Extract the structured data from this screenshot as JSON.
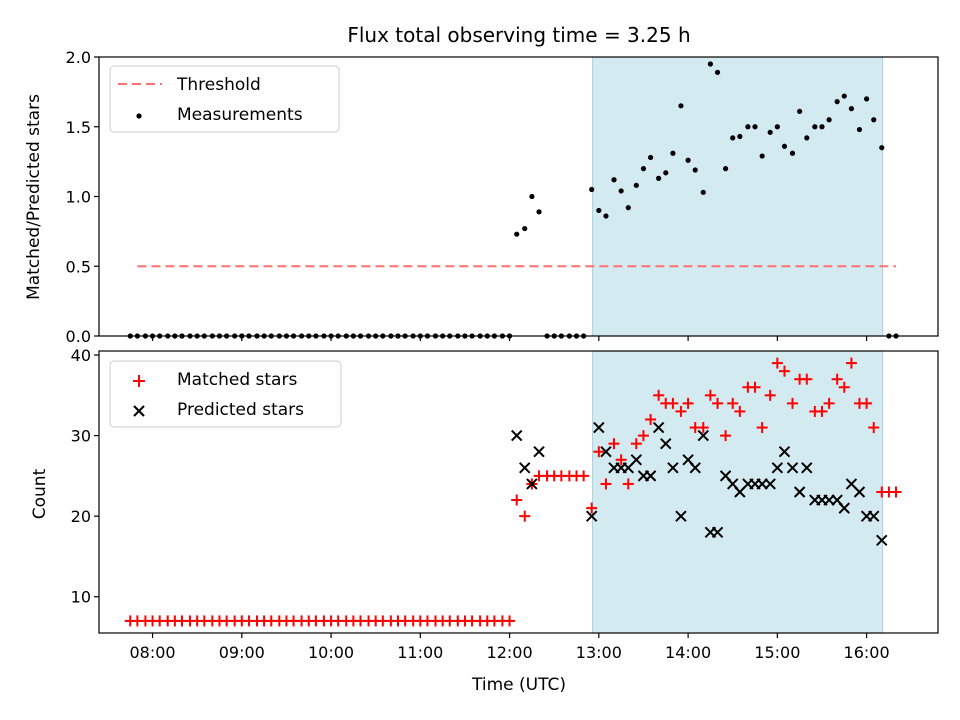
{
  "chart_data": {
    "title": "Flux total observing time = 3.25 h",
    "xlabel": "Time (UTC)",
    "xtick_labels": [
      "08:00",
      "09:00",
      "10:00",
      "11:00",
      "12:00",
      "13:00",
      "14:00",
      "15:00",
      "16:00"
    ],
    "xlim_hours": [
      7.4,
      16.8
    ],
    "highlight": {
      "start": 12.93,
      "end": 16.18,
      "color": "#d3eaf0"
    },
    "top": {
      "type": "scatter",
      "ylabel": "Matched/Predicted stars",
      "ylim": [
        0,
        2.0
      ],
      "yticks": [
        0.0,
        0.5,
        1.0,
        1.5,
        2.0
      ],
      "ytick_labels": [
        "0.0",
        "0.5",
        "1.0",
        "1.5",
        "2.0"
      ],
      "threshold": {
        "label": "Threshold",
        "value": 0.5,
        "x_start": 7.83,
        "x_end": 16.33,
        "color": "#ff7070"
      },
      "measurements_label": "Measurements",
      "measurements": [
        [
          7.75,
          0
        ],
        [
          7.83,
          0
        ],
        [
          7.92,
          0
        ],
        [
          8.0,
          0
        ],
        [
          8.08,
          0
        ],
        [
          8.17,
          0
        ],
        [
          8.25,
          0
        ],
        [
          8.33,
          0
        ],
        [
          8.42,
          0
        ],
        [
          8.5,
          0
        ],
        [
          8.58,
          0
        ],
        [
          8.67,
          0
        ],
        [
          8.75,
          0
        ],
        [
          8.83,
          0
        ],
        [
          8.92,
          0
        ],
        [
          9.0,
          0
        ],
        [
          9.08,
          0
        ],
        [
          9.17,
          0
        ],
        [
          9.25,
          0
        ],
        [
          9.33,
          0
        ],
        [
          9.42,
          0
        ],
        [
          9.5,
          0
        ],
        [
          9.58,
          0
        ],
        [
          9.67,
          0
        ],
        [
          9.75,
          0
        ],
        [
          9.83,
          0
        ],
        [
          9.92,
          0
        ],
        [
          10.0,
          0
        ],
        [
          10.08,
          0
        ],
        [
          10.17,
          0
        ],
        [
          10.25,
          0
        ],
        [
          10.33,
          0
        ],
        [
          10.42,
          0
        ],
        [
          10.5,
          0
        ],
        [
          10.58,
          0
        ],
        [
          10.67,
          0
        ],
        [
          10.75,
          0
        ],
        [
          10.83,
          0
        ],
        [
          10.92,
          0
        ],
        [
          11.0,
          0
        ],
        [
          11.08,
          0
        ],
        [
          11.17,
          0
        ],
        [
          11.25,
          0
        ],
        [
          11.33,
          0
        ],
        [
          11.42,
          0
        ],
        [
          11.5,
          0
        ],
        [
          11.58,
          0
        ],
        [
          11.67,
          0
        ],
        [
          11.75,
          0
        ],
        [
          11.83,
          0
        ],
        [
          11.92,
          0
        ],
        [
          12.0,
          0
        ],
        [
          12.08,
          0.73
        ],
        [
          12.17,
          0.77
        ],
        [
          12.25,
          1.0
        ],
        [
          12.33,
          0.89
        ],
        [
          12.42,
          0
        ],
        [
          12.5,
          0
        ],
        [
          12.58,
          0
        ],
        [
          12.67,
          0
        ],
        [
          12.75,
          0
        ],
        [
          12.83,
          0
        ],
        [
          12.92,
          1.05
        ],
        [
          13.0,
          0.9
        ],
        [
          13.08,
          0.86
        ],
        [
          13.17,
          1.12
        ],
        [
          13.25,
          1.04
        ],
        [
          13.33,
          0.92
        ],
        [
          13.42,
          1.08
        ],
        [
          13.5,
          1.2
        ],
        [
          13.58,
          1.28
        ],
        [
          13.67,
          1.13
        ],
        [
          13.75,
          1.17
        ],
        [
          13.83,
          1.31
        ],
        [
          13.92,
          1.65
        ],
        [
          14.0,
          1.26
        ],
        [
          14.08,
          1.19
        ],
        [
          14.17,
          1.03
        ],
        [
          14.25,
          1.95
        ],
        [
          14.33,
          1.89
        ],
        [
          14.42,
          1.2
        ],
        [
          14.5,
          1.42
        ],
        [
          14.58,
          1.43
        ],
        [
          14.67,
          1.5
        ],
        [
          14.75,
          1.5
        ],
        [
          14.83,
          1.29
        ],
        [
          14.92,
          1.46
        ],
        [
          15.0,
          1.5
        ],
        [
          15.08,
          1.36
        ],
        [
          15.17,
          1.31
        ],
        [
          15.25,
          1.61
        ],
        [
          15.33,
          1.42
        ],
        [
          15.42,
          1.5
        ],
        [
          15.5,
          1.5
        ],
        [
          15.58,
          1.55
        ],
        [
          15.67,
          1.68
        ],
        [
          15.75,
          1.72
        ],
        [
          15.83,
          1.63
        ],
        [
          15.92,
          1.48
        ],
        [
          16.0,
          1.7
        ],
        [
          16.08,
          1.55
        ],
        [
          16.17,
          1.35
        ],
        [
          16.25,
          0
        ],
        [
          16.33,
          0
        ]
      ]
    },
    "bottom": {
      "type": "scatter",
      "ylabel": "Count",
      "ylim": [
        5.5,
        40.5
      ],
      "yticks": [
        10,
        20,
        30,
        40
      ],
      "ytick_labels": [
        "10",
        "20",
        "30",
        "40"
      ],
      "matched_label": "Matched stars",
      "predicted_label": "Predicted stars",
      "matched": [
        [
          7.75,
          7
        ],
        [
          7.83,
          7
        ],
        [
          7.92,
          7
        ],
        [
          8.0,
          7
        ],
        [
          8.08,
          7
        ],
        [
          8.17,
          7
        ],
        [
          8.25,
          7
        ],
        [
          8.33,
          7
        ],
        [
          8.42,
          7
        ],
        [
          8.5,
          7
        ],
        [
          8.58,
          7
        ],
        [
          8.67,
          7
        ],
        [
          8.75,
          7
        ],
        [
          8.83,
          7
        ],
        [
          8.92,
          7
        ],
        [
          9.0,
          7
        ],
        [
          9.08,
          7
        ],
        [
          9.17,
          7
        ],
        [
          9.25,
          7
        ],
        [
          9.33,
          7
        ],
        [
          9.42,
          7
        ],
        [
          9.5,
          7
        ],
        [
          9.58,
          7
        ],
        [
          9.67,
          7
        ],
        [
          9.75,
          7
        ],
        [
          9.83,
          7
        ],
        [
          9.92,
          7
        ],
        [
          10.0,
          7
        ],
        [
          10.08,
          7
        ],
        [
          10.17,
          7
        ],
        [
          10.25,
          7
        ],
        [
          10.33,
          7
        ],
        [
          10.42,
          7
        ],
        [
          10.5,
          7
        ],
        [
          10.58,
          7
        ],
        [
          10.67,
          7
        ],
        [
          10.75,
          7
        ],
        [
          10.83,
          7
        ],
        [
          10.92,
          7
        ],
        [
          11.0,
          7
        ],
        [
          11.08,
          7
        ],
        [
          11.17,
          7
        ],
        [
          11.25,
          7
        ],
        [
          11.33,
          7
        ],
        [
          11.42,
          7
        ],
        [
          11.5,
          7
        ],
        [
          11.58,
          7
        ],
        [
          11.67,
          7
        ],
        [
          11.75,
          7
        ],
        [
          11.83,
          7
        ],
        [
          11.92,
          7
        ],
        [
          12.0,
          7
        ],
        [
          12.08,
          22
        ],
        [
          12.17,
          20
        ],
        [
          12.25,
          24
        ],
        [
          12.33,
          25
        ],
        [
          12.42,
          25
        ],
        [
          12.5,
          25
        ],
        [
          12.58,
          25
        ],
        [
          12.67,
          25
        ],
        [
          12.75,
          25
        ],
        [
          12.83,
          25
        ],
        [
          12.92,
          21
        ],
        [
          13.0,
          28
        ],
        [
          13.08,
          24
        ],
        [
          13.17,
          29
        ],
        [
          13.25,
          27
        ],
        [
          13.33,
          24
        ],
        [
          13.42,
          29
        ],
        [
          13.5,
          30
        ],
        [
          13.58,
          32
        ],
        [
          13.67,
          35
        ],
        [
          13.75,
          34
        ],
        [
          13.83,
          34
        ],
        [
          13.92,
          33
        ],
        [
          14.0,
          34
        ],
        [
          14.08,
          31
        ],
        [
          14.17,
          31
        ],
        [
          14.25,
          35
        ],
        [
          14.33,
          34
        ],
        [
          14.42,
          30
        ],
        [
          14.5,
          34
        ],
        [
          14.58,
          33
        ],
        [
          14.67,
          36
        ],
        [
          14.75,
          36
        ],
        [
          14.83,
          31
        ],
        [
          14.92,
          35
        ],
        [
          15.0,
          39
        ],
        [
          15.08,
          38
        ],
        [
          15.17,
          34
        ],
        [
          15.25,
          37
        ],
        [
          15.33,
          37
        ],
        [
          15.42,
          33
        ],
        [
          15.5,
          33
        ],
        [
          15.58,
          34
        ],
        [
          15.67,
          37
        ],
        [
          15.75,
          36
        ],
        [
          15.83,
          39
        ],
        [
          15.92,
          34
        ],
        [
          16.0,
          34
        ],
        [
          16.08,
          31
        ],
        [
          16.17,
          23
        ],
        [
          16.25,
          23
        ],
        [
          16.33,
          23
        ]
      ],
      "predicted": [
        [
          12.08,
          30
        ],
        [
          12.17,
          26
        ],
        [
          12.25,
          24
        ],
        [
          12.33,
          28
        ],
        [
          12.92,
          20
        ],
        [
          13.0,
          31
        ],
        [
          13.08,
          28
        ],
        [
          13.17,
          26
        ],
        [
          13.25,
          26
        ],
        [
          13.33,
          26
        ],
        [
          13.42,
          27
        ],
        [
          13.5,
          25
        ],
        [
          13.58,
          25
        ],
        [
          13.67,
          31
        ],
        [
          13.75,
          29
        ],
        [
          13.83,
          26
        ],
        [
          13.92,
          20
        ],
        [
          14.0,
          27
        ],
        [
          14.08,
          26
        ],
        [
          14.17,
          30
        ],
        [
          14.25,
          18
        ],
        [
          14.33,
          18
        ],
        [
          14.42,
          25
        ],
        [
          14.5,
          24
        ],
        [
          14.58,
          23
        ],
        [
          14.67,
          24
        ],
        [
          14.75,
          24
        ],
        [
          14.83,
          24
        ],
        [
          14.92,
          24
        ],
        [
          15.0,
          26
        ],
        [
          15.08,
          28
        ],
        [
          15.17,
          26
        ],
        [
          15.25,
          23
        ],
        [
          15.33,
          26
        ],
        [
          15.42,
          22
        ],
        [
          15.5,
          22
        ],
        [
          15.58,
          22
        ],
        [
          15.67,
          22
        ],
        [
          15.75,
          21
        ],
        [
          15.83,
          24
        ],
        [
          15.92,
          23
        ],
        [
          16.0,
          20
        ],
        [
          16.08,
          20
        ],
        [
          16.17,
          17
        ]
      ]
    }
  }
}
